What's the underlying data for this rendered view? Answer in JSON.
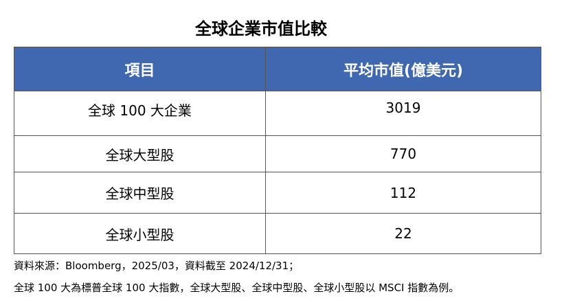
{
  "title": "全球企業市值比較",
  "table": {
    "header": [
      "項目",
      "平均市值(億美元)"
    ],
    "rows": [
      [
        "全球 100 大企業",
        3019
      ],
      [
        "全球大型股",
        770
      ],
      [
        "全球中型股",
        112
      ],
      [
        "全球小型股",
        22
      ]
    ]
  },
  "notes": [
    "資料來源：Bloomberg，2025/03，資料截至 2024/12/31；",
    "全球 100 大為標普全球 100 大指數，全球大型股、全球中型股、全球小型股以 MSCI 指數為例。"
  ]
}
